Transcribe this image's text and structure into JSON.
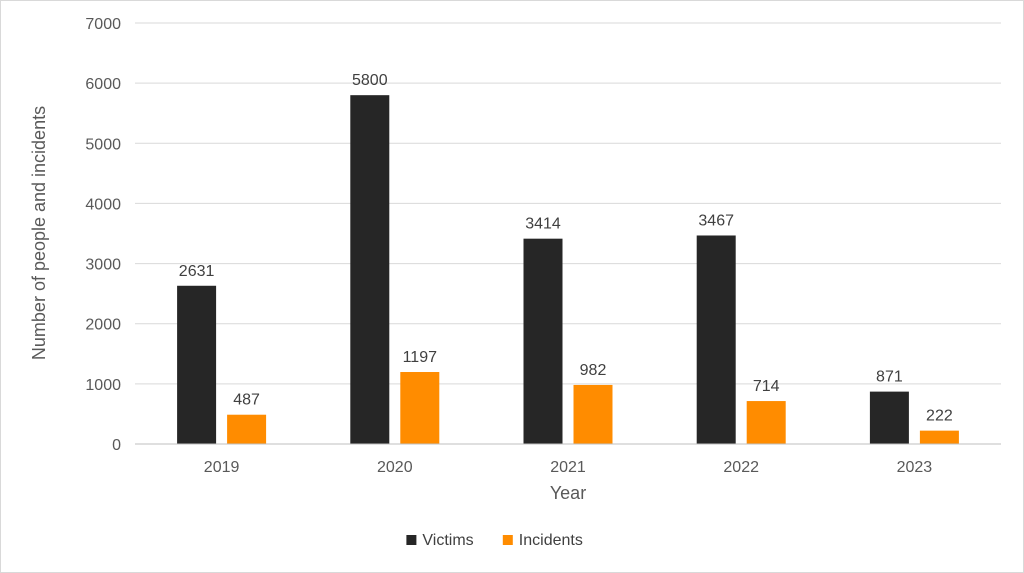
{
  "chart_data": {
    "type": "bar",
    "title": "",
    "xlabel": "Year",
    "ylabel": "Number of people and incidents",
    "categories": [
      "2019",
      "2020",
      "2021",
      "2022",
      "2023"
    ],
    "series": [
      {
        "name": "Victims",
        "color": "#262626",
        "values": [
          2631,
          5800,
          3414,
          3467,
          871
        ]
      },
      {
        "name": "Incidents",
        "color": "#ff8c00",
        "values": [
          487,
          1197,
          982,
          714,
          222
        ]
      }
    ],
    "ylim": [
      0,
      7000
    ],
    "yticks": [
      0,
      1000,
      2000,
      3000,
      4000,
      5000,
      6000,
      7000
    ],
    "grid": true,
    "legend_position": "bottom",
    "colors": {
      "gridline": "#d9d9d9",
      "axis": "#bfbfbf"
    }
  }
}
